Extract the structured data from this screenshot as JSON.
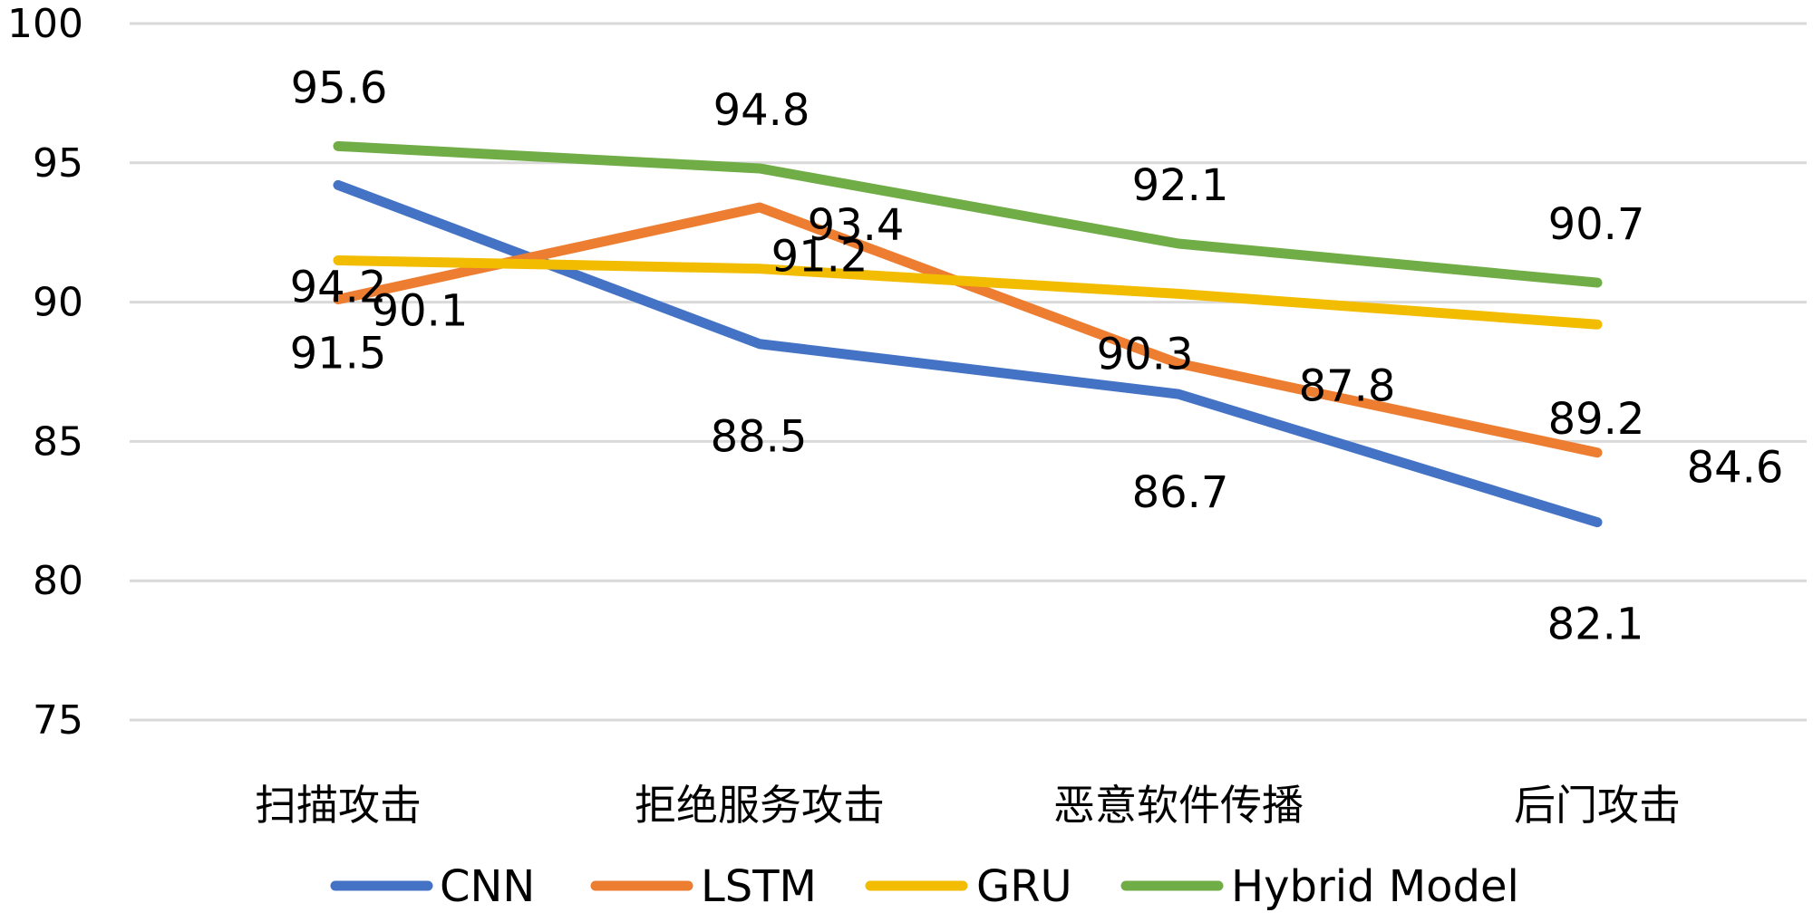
{
  "chart_data": {
    "type": "line",
    "categories": [
      "扫描攻击",
      "拒绝服务攻击",
      "恶意软件传播",
      "后门攻击"
    ],
    "ylim": [
      75,
      100
    ],
    "yticks": [
      75,
      80,
      85,
      90,
      95,
      100
    ],
    "grid": true,
    "legend_position": "bottom",
    "series": [
      {
        "name": "CNN",
        "color": "#4472C4",
        "values": [
          94.2,
          88.5,
          86.7,
          82.1
        ]
      },
      {
        "name": "LSTM",
        "color": "#ED7D31",
        "values": [
          90.1,
          93.4,
          87.8,
          84.6
        ]
      },
      {
        "name": "GRU",
        "color": "#F2BC00",
        "values": [
          91.5,
          91.2,
          90.3,
          89.2
        ]
      },
      {
        "name": "Hybrid Model",
        "color": "#70AD47",
        "values": [
          95.6,
          94.8,
          92.1,
          90.7
        ]
      }
    ]
  }
}
